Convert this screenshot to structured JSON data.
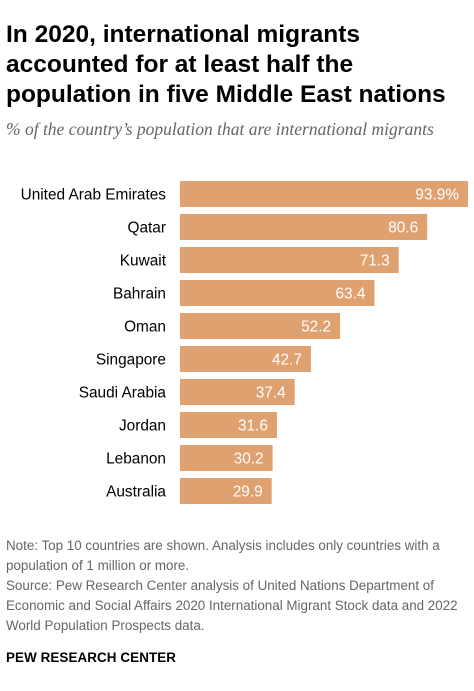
{
  "header": {
    "title": "In 2020, international migrants accounted for at least half the population in five Middle East nations",
    "subtitle": "% of the country’s population that are international migrants"
  },
  "chart_data": {
    "type": "bar",
    "orientation": "horizontal",
    "title": "In 2020, international migrants accounted for at least half the population in five Middle East nations",
    "subtitle": "% of the country’s population that are international migrants",
    "categories": [
      "United Arab Emirates",
      "Qatar",
      "Kuwait",
      "Bahrain",
      "Oman",
      "Singapore",
      "Saudi Arabia",
      "Jordan",
      "Lebanon",
      "Australia"
    ],
    "values": [
      93.9,
      80.6,
      71.3,
      63.4,
      52.2,
      42.7,
      37.4,
      31.6,
      30.2,
      29.9
    ],
    "value_labels": [
      "93.9%",
      "80.6",
      "71.3",
      "63.4",
      "52.2",
      "42.7",
      "37.4",
      "31.6",
      "30.2",
      "29.9"
    ],
    "xlabel": "",
    "ylabel": "",
    "xlim": [
      0,
      93.9
    ],
    "grid": false,
    "legend": "none",
    "bar_color": "#E0A170",
    "label_color": "#ffffff"
  },
  "notes": {
    "note": "Note: Top 10 countries are shown. Analysis includes only countries with a population of 1 million or more.",
    "source": "Source: Pew Research Center analysis of United Nations Department of Economic and Social Affairs 2020 International Migrant Stock data and 2022 World Population Prospects data."
  },
  "footer": {
    "brand": "PEW RESEARCH CENTER"
  }
}
